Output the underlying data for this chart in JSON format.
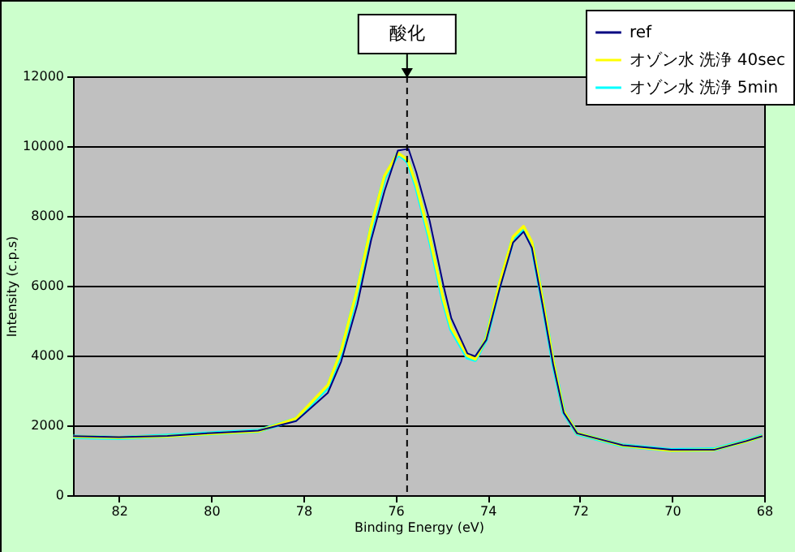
{
  "chart_data": {
    "type": "line",
    "xlabel": "Binding Energy (eV)",
    "ylabel": "Intensity (c.p.s)",
    "x": [
      83,
      82,
      80.95,
      80,
      78.98,
      78.16,
      77.47,
      77.18,
      76.83,
      76.53,
      76.24,
      75.95,
      75.78,
      75.72,
      75.55,
      75.26,
      74.96,
      74.79,
      74.44,
      74.27,
      74.03,
      73.74,
      73.45,
      73.22,
      73.04,
      72.81,
      72.58,
      72.35,
      72.06,
      71.07,
      70.02,
      69.09,
      68.39,
      68.04
    ],
    "series": [
      {
        "name": "ref",
        "color": "#000080",
        "values": [
          1690,
          1660,
          1700,
          1780,
          1850,
          2120,
          2930,
          3830,
          5460,
          7310,
          8710,
          9870,
          9910,
          9920,
          9250,
          7860,
          6000,
          5070,
          4060,
          3980,
          4450,
          5920,
          7240,
          7550,
          7080,
          5460,
          3750,
          2360,
          1770,
          1430,
          1300,
          1300,
          1550,
          1690
        ]
      },
      {
        "name": "オゾン水 洗浄 40sec",
        "color": "#ffff00",
        "values": [
          1680,
          1650,
          1690,
          1760,
          1830,
          2200,
          3150,
          4150,
          5900,
          7700,
          9150,
          9800,
          9650,
          9550,
          8900,
          7400,
          5600,
          4800,
          4000,
          3900,
          4500,
          6100,
          7400,
          7700,
          7250,
          5600,
          3850,
          2400,
          1780,
          1420,
          1280,
          1300,
          1540,
          1690
        ]
      },
      {
        "name": "オゾン水 洗浄  5min",
        "color": "#00ffff",
        "values": [
          1670,
          1640,
          1700,
          1770,
          1840,
          2180,
          3100,
          4100,
          5850,
          7650,
          9100,
          9780,
          9620,
          9520,
          8850,
          7350,
          5550,
          4750,
          3950,
          3880,
          4480,
          6050,
          7350,
          7650,
          7200,
          5550,
          3800,
          2380,
          1770,
          1420,
          1290,
          1310,
          1550,
          1700
        ]
      }
    ],
    "xlim": [
      83,
      68
    ],
    "xticks": [
      82,
      80,
      78,
      76,
      74,
      72,
      70,
      68
    ],
    "ylim": [
      0,
      12000
    ],
    "yticks": [
      0,
      2000,
      4000,
      6000,
      8000,
      10000,
      12000
    ],
    "grid": "y",
    "legend": "top right",
    "ref_lines": [
      {
        "axis": "x",
        "value": 75.75,
        "label": "酸化",
        "line_style": "dashed"
      }
    ]
  }
}
